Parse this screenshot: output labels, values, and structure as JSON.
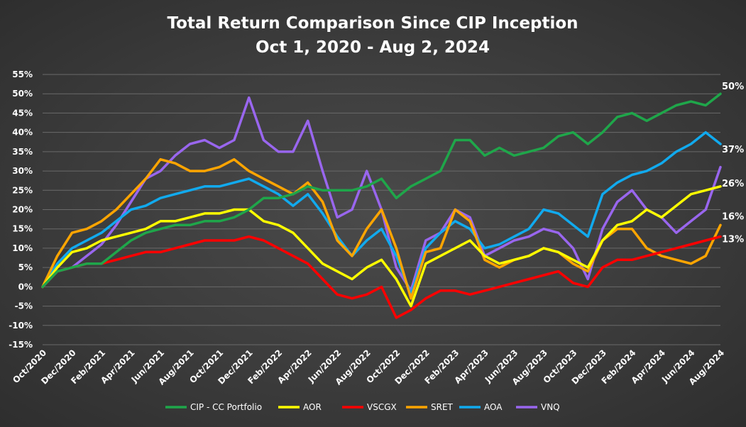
{
  "chart_data": {
    "type": "line",
    "title": "Total Return Comparison Since CIP Inception",
    "subtitle": "Oct 1, 2020 - Aug 2, 2024",
    "xlabel": "",
    "ylabel": "",
    "ylim": [
      -15,
      55
    ],
    "y_ticks": [
      "55%",
      "50%",
      "45%",
      "40%",
      "35%",
      "30%",
      "25%",
      "20%",
      "15%",
      "10%",
      "5%",
      "0%",
      "-5%",
      "-10%",
      "-15%"
    ],
    "x_ticks": [
      "Oct/2020",
      "Dec/2020",
      "Feb/2021",
      "Apr/2021",
      "Jun/2021",
      "Aug/2021",
      "Oct/2021",
      "Dec/2021",
      "Feb/2022",
      "Apr/2022",
      "Jun/2022",
      "Aug/2022",
      "Oct/2022",
      "Dec/2022",
      "Feb/2023",
      "Apr/2023",
      "Jun/2023",
      "Aug/2023",
      "Oct/2023",
      "Dec/2023",
      "Feb/2024",
      "Apr/2024",
      "Jun/2024",
      "Aug/2024"
    ],
    "grid": true,
    "legend_position": "bottom",
    "x": [
      "2020-10",
      "2020-11",
      "2020-12",
      "2021-01",
      "2021-02",
      "2021-03",
      "2021-04",
      "2021-05",
      "2021-06",
      "2021-07",
      "2021-08",
      "2021-09",
      "2021-10",
      "2021-11",
      "2021-12",
      "2022-01",
      "2022-02",
      "2022-03",
      "2022-04",
      "2022-05",
      "2022-06",
      "2022-07",
      "2022-08",
      "2022-09",
      "2022-10",
      "2022-11",
      "2022-12",
      "2023-01",
      "2023-02",
      "2023-03",
      "2023-04",
      "2023-05",
      "2023-06",
      "2023-07",
      "2023-08",
      "2023-09",
      "2023-10",
      "2023-11",
      "2023-12",
      "2024-01",
      "2024-02",
      "2024-03",
      "2024-04",
      "2024-05",
      "2024-06",
      "2024-07",
      "2024-08"
    ],
    "series": [
      {
        "name": "CIP - CC Portfolio",
        "color": "#1fa64a",
        "end_label": "50%",
        "values": [
          0,
          4,
          5,
          6,
          6,
          9,
          12,
          14,
          15,
          16,
          16,
          17,
          17,
          18,
          20,
          23,
          23,
          24,
          26,
          25,
          25,
          25,
          26,
          28,
          23,
          26,
          28,
          30,
          38,
          38,
          34,
          36,
          34,
          35,
          36,
          39,
          40,
          37,
          40,
          44,
          45,
          43,
          45,
          47,
          48,
          47,
          50
        ]
      },
      {
        "name": "AOR",
        "color": "#ffff00",
        "end_label": "26%",
        "values": [
          0,
          5,
          9,
          10,
          12,
          13,
          14,
          15,
          17,
          17,
          18,
          19,
          19,
          20,
          20,
          17,
          16,
          14,
          10,
          6,
          4,
          2,
          5,
          7,
          2,
          -5,
          6,
          8,
          10,
          12,
          8,
          6,
          7,
          8,
          10,
          9,
          7,
          5,
          12,
          16,
          17,
          20,
          18,
          21,
          24,
          25,
          26
        ]
      },
      {
        "name": "VSCGX",
        "color": "#ff0000",
        "end_label": "13%",
        "values": [
          0,
          4,
          5,
          6,
          6,
          7,
          8,
          9,
          9,
          10,
          11,
          12,
          12,
          12,
          13,
          12,
          10,
          8,
          6,
          2,
          -2,
          -3,
          -2,
          0,
          -8,
          -6,
          -3,
          -1,
          -1,
          -2,
          -1,
          0,
          1,
          2,
          3,
          4,
          1,
          0,
          5,
          7,
          7,
          8,
          9,
          10,
          11,
          12,
          13
        ]
      },
      {
        "name": "SRET",
        "color": "#ffa500",
        "end_label": "16%",
        "values": [
          0,
          8,
          14,
          15,
          17,
          20,
          24,
          28,
          33,
          32,
          30,
          30,
          31,
          33,
          30,
          28,
          26,
          24,
          27,
          22,
          12,
          8,
          15,
          20,
          10,
          -3,
          9,
          10,
          20,
          17,
          7,
          5,
          7,
          8,
          10,
          9,
          6,
          4,
          12,
          15,
          15,
          10,
          8,
          7,
          6,
          8,
          16
        ]
      },
      {
        "name": "AOA",
        "color": "#11aaee",
        "end_label": "37%",
        "values": [
          0,
          6,
          10,
          12,
          14,
          17,
          20,
          21,
          23,
          24,
          25,
          26,
          26,
          27,
          28,
          26,
          24,
          21,
          24,
          19,
          13,
          8,
          12,
          15,
          8,
          -2,
          10,
          14,
          17,
          15,
          10,
          11,
          13,
          15,
          20,
          19,
          16,
          13,
          24,
          27,
          29,
          30,
          32,
          35,
          37,
          40,
          37
        ]
      },
      {
        "name": "VNQ",
        "color": "#9966ee",
        "end_label": "",
        "values": [
          0,
          4,
          5,
          8,
          11,
          16,
          22,
          28,
          30,
          34,
          37,
          38,
          36,
          38,
          49,
          38,
          35,
          35,
          43,
          30,
          18,
          20,
          30,
          20,
          5,
          -1,
          12,
          14,
          20,
          18,
          8,
          10,
          12,
          13,
          15,
          14,
          10,
          2,
          15,
          22,
          25,
          20,
          18,
          14,
          17,
          20,
          31
        ]
      }
    ]
  }
}
